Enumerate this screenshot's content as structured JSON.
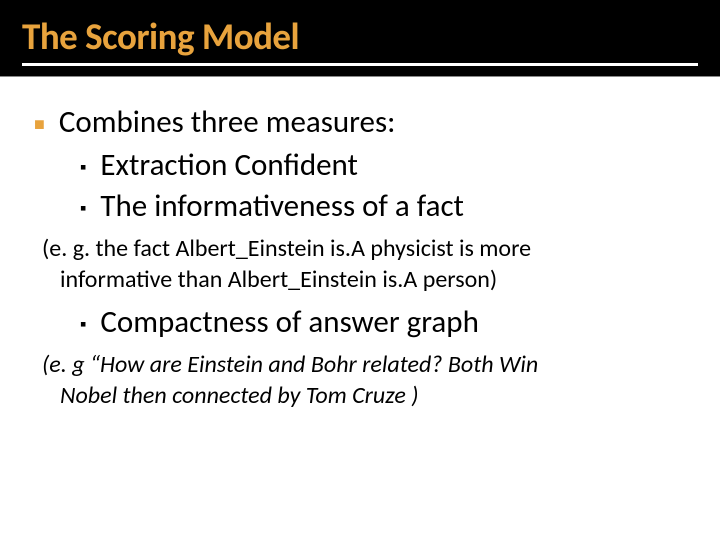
{
  "title": "The Scoring Model",
  "colors": {
    "title_text": "#e8a33d",
    "title_bg": "#000000",
    "title_underline": "#ffffff",
    "body_text": "#000000",
    "bullet_l1": "#e8a33d",
    "bullet_l2": "#000000",
    "background": "#ffffff"
  },
  "typography": {
    "title_fontsize": 37,
    "body_fontsize": 31,
    "note_fontsize": 24,
    "title_weight": 700,
    "font_family": "Calibri"
  },
  "bullets": {
    "level1": [
      {
        "text": "Combines three measures:"
      }
    ],
    "level2": [
      {
        "text": "Extraction Confident"
      },
      {
        "text": "The informativeness of a fact"
      },
      {
        "text": "Compactness of answer graph"
      }
    ]
  },
  "notes": {
    "note1_line1": "(e. g. the fact Albert_Einstein is.A physicist is more",
    "note1_line2": "informative than Albert_Einstein is.A person)",
    "note2_line1": "(e. g “How are Einstein and Bohr related?  Both Win",
    "note2_line2": "Nobel then connected by Tom Cruze )"
  },
  "markers": {
    "l1": "■",
    "l2": "▪"
  }
}
